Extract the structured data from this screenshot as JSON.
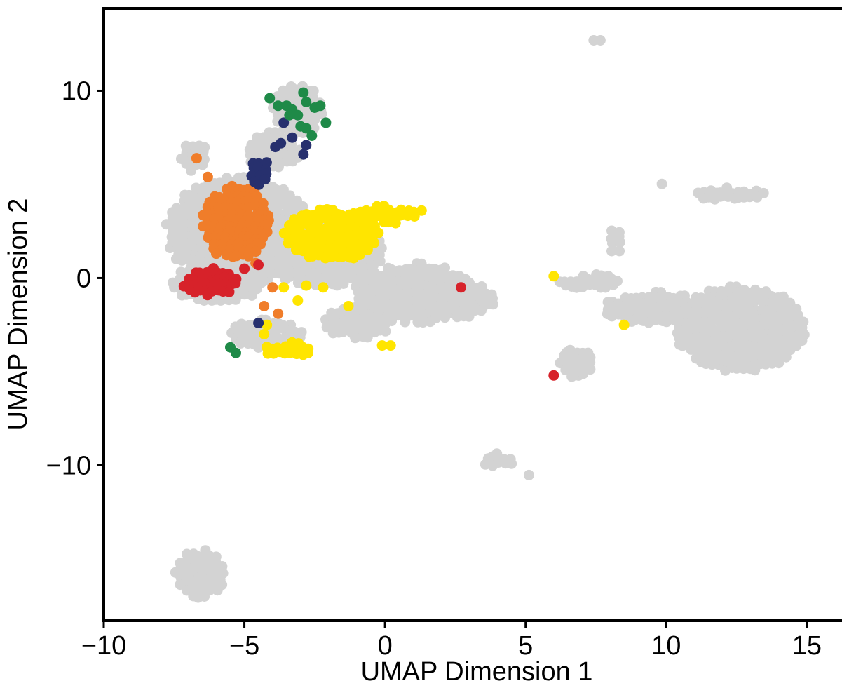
{
  "chart_data": {
    "type": "scatter",
    "title": "",
    "xlabel": "UMAP Dimension 1",
    "ylabel": "UMAP Dimension 2",
    "xlim": [
      -10,
      16.25
    ],
    "ylim": [
      -18.3,
      14.4
    ],
    "xticks": [
      -10,
      -5,
      0,
      5,
      10,
      15
    ],
    "xtick_labels": [
      "−10",
      "−5",
      "0",
      "5",
      "10",
      "15"
    ],
    "yticks": [
      -10,
      0,
      10
    ],
    "ytick_labels": [
      "−10",
      "0",
      "10"
    ],
    "grid": false,
    "legend": "none",
    "colors": {
      "background_cells": "#d3d3d3",
      "yellow": "#ffe500",
      "orange": "#f07d2a",
      "red": "#d7222a",
      "navy": "#27306e",
      "green": "#1f8a48"
    },
    "background_regions": [
      {
        "cx": -5.2,
        "cy": 2.5,
        "rx": 2.6,
        "ry": 2.9
      },
      {
        "cx": -6.0,
        "cy": -0.3,
        "rx": 1.7,
        "ry": 1.0
      },
      {
        "cx": -2.2,
        "cy": 1.5,
        "rx": 2.2,
        "ry": 2.0
      },
      {
        "cx": 1.0,
        "cy": -0.8,
        "rx": 2.2,
        "ry": 1.6
      },
      {
        "cx": 2.6,
        "cy": -1.2,
        "rx": 1.3,
        "ry": 1.0
      },
      {
        "cx": -4.0,
        "cy": 6.8,
        "rx": 1.0,
        "ry": 1.0
      },
      {
        "cx": -3.1,
        "cy": 9.0,
        "rx": 0.9,
        "ry": 1.3
      },
      {
        "cx": -6.8,
        "cy": 6.5,
        "rx": 0.5,
        "ry": 0.8
      },
      {
        "cx": -4.2,
        "cy": -3.0,
        "rx": 1.3,
        "ry": 0.8
      },
      {
        "cx": -1.0,
        "cy": -2.4,
        "rx": 1.3,
        "ry": 0.8
      },
      {
        "cx": 12.6,
        "cy": -2.7,
        "rx": 2.4,
        "ry": 2.3
      },
      {
        "cx": 9.5,
        "cy": -1.6,
        "rx": 1.8,
        "ry": 0.9
      },
      {
        "cx": 7.3,
        "cy": -0.2,
        "rx": 1.1,
        "ry": 0.4
      },
      {
        "cx": 12.2,
        "cy": 4.5,
        "rx": 1.3,
        "ry": 0.4
      },
      {
        "cx": 8.2,
        "cy": 2.0,
        "rx": 0.3,
        "ry": 0.8
      },
      {
        "cx": 6.8,
        "cy": -4.5,
        "rx": 0.6,
        "ry": 0.9
      },
      {
        "cx": -6.6,
        "cy": -15.8,
        "rx": 0.9,
        "ry": 1.3
      },
      {
        "cx": 4.0,
        "cy": -9.7,
        "rx": 0.6,
        "ry": 0.4
      },
      {
        "cx": 7.5,
        "cy": 12.7,
        "rx": 0.25,
        "ry": 0.25
      },
      {
        "cx": 9.9,
        "cy": 5.2,
        "rx": 0.25,
        "ry": 0.2
      },
      {
        "cx": 5.0,
        "cy": -10.6,
        "rx": 0.25,
        "ry": 0.15
      }
    ],
    "series": [
      {
        "key": "yellow",
        "clusters": [
          {
            "cx": -1.9,
            "cy": 2.3,
            "rx": 1.7,
            "ry": 1.4
          },
          {
            "cx": 0.0,
            "cy": 3.4,
            "rx": 1.1,
            "ry": 0.5
          },
          {
            "cx": -3.5,
            "cy": -3.8,
            "rx": 0.9,
            "ry": 0.4
          }
        ],
        "points": [
          [
            -4.9,
            1.7
          ],
          [
            -4.2,
            -2.5
          ],
          [
            -3.1,
            -1.2
          ],
          [
            -2.8,
            -0.4
          ],
          [
            -2.2,
            -0.5
          ],
          [
            -1.3,
            -1.5
          ],
          [
            -0.1,
            -3.6
          ],
          [
            0.2,
            -3.6
          ],
          [
            1.3,
            3.6
          ],
          [
            6.0,
            0.1
          ],
          [
            8.5,
            -2.5
          ],
          [
            -3.6,
            -0.5
          ],
          [
            -4.3,
            -3.0
          ]
        ]
      },
      {
        "key": "orange",
        "clusters": [
          {
            "cx": -5.3,
            "cy": 3.0,
            "rx": 1.2,
            "ry": 2.0
          }
        ],
        "points": [
          [
            -6.7,
            6.4
          ],
          [
            -6.3,
            5.4
          ],
          [
            -4.3,
            -1.5
          ],
          [
            -3.8,
            -1.9
          ],
          [
            -4.0,
            -0.5
          ],
          [
            -6.0,
            1.3
          ],
          [
            -4.6,
            0.8
          ]
        ]
      },
      {
        "key": "red",
        "clusters": [
          {
            "cx": -6.2,
            "cy": -0.2,
            "rx": 1.0,
            "ry": 0.8
          }
        ],
        "points": [
          [
            2.7,
            -0.5
          ],
          [
            6.0,
            -5.2
          ],
          [
            -4.5,
            0.7
          ],
          [
            -5.0,
            0.5
          ]
        ]
      },
      {
        "key": "navy",
        "clusters": [
          {
            "cx": -4.5,
            "cy": 5.7,
            "rx": 0.4,
            "ry": 0.8
          }
        ],
        "points": [
          [
            -3.6,
            8.3
          ],
          [
            -3.3,
            7.5
          ],
          [
            -2.9,
            6.6
          ],
          [
            -2.8,
            7.1
          ],
          [
            -3.9,
            7.0
          ],
          [
            -3.7,
            7.2
          ],
          [
            -4.5,
            -2.4
          ]
        ]
      },
      {
        "key": "green",
        "clusters": [],
        "points": [
          [
            -4.1,
            9.6
          ],
          [
            -3.8,
            9.2
          ],
          [
            -3.5,
            9.2
          ],
          [
            -3.3,
            9.0
          ],
          [
            -3.1,
            8.7
          ],
          [
            -2.9,
            9.9
          ],
          [
            -2.8,
            9.4
          ],
          [
            -2.5,
            9.1
          ],
          [
            -2.3,
            9.2
          ],
          [
            -2.1,
            8.3
          ],
          [
            -2.6,
            7.6
          ],
          [
            -3.0,
            8.1
          ],
          [
            -2.8,
            8.0
          ],
          [
            -3.4,
            8.7
          ],
          [
            -5.5,
            -3.7
          ],
          [
            -5.3,
            -4.0
          ]
        ]
      }
    ]
  }
}
